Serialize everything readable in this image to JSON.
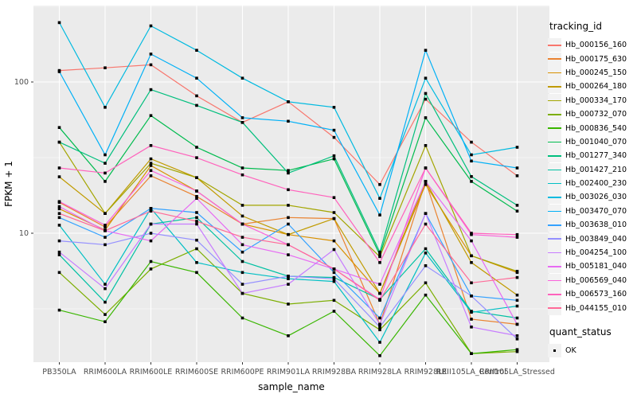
{
  "chart_data": {
    "type": "line",
    "title": "",
    "xlabel": "sample_name",
    "ylabel": "FPKM + 1",
    "y_scale": "log10",
    "ylim": [
      1.4,
      320
    ],
    "y_major_ticks": [
      10,
      100
    ],
    "y_tick_labels": [
      "10",
      "100"
    ],
    "y_minor_gridlines": [
      3.162,
      31.62,
      316.2
    ],
    "grid": "on",
    "panel_background": "#EBEBEB",
    "gridline_color": "#FFFFFF",
    "marker": "black-square",
    "legend_position": "right",
    "categories": [
      "PB350LA",
      "RRIM600LA",
      "RRIM600LE",
      "RRIM600SE",
      "RRIM600PE",
      "RRIM901LA",
      "RRIM928BA",
      "RRIM928LA",
      "RRIM928LE",
      "RRII105LA_Control",
      "RRII105LA_Stressed"
    ],
    "series": [
      {
        "name": "Hb_000156_160",
        "color": "#F8766D",
        "values": [
          119,
          124,
          130,
          81,
          54,
          74,
          43,
          21,
          77,
          40,
          24
        ]
      },
      {
        "name": "Hb_000175_630",
        "color": "#EA8331",
        "values": [
          16,
          11,
          24,
          17.5,
          11.5,
          12.7,
          12.5,
          2.5,
          22,
          2.7,
          2.5
        ]
      },
      {
        "name": "Hb_000245_150",
        "color": "#D89000",
        "values": [
          14.5,
          10.5,
          28,
          19,
          11.5,
          9.8,
          8.9,
          4.0,
          21,
          7.1,
          5.5
        ]
      },
      {
        "name": "Hb_000264_180",
        "color": "#C09B00",
        "values": [
          23.6,
          13.5,
          31,
          23.3,
          13,
          9.8,
          12.5,
          4.0,
          22,
          6.4,
          3.9
        ]
      },
      {
        "name": "Hb_000334_170",
        "color": "#A3A500",
        "values": [
          40,
          13.5,
          29,
          23.3,
          15.3,
          15.3,
          13.7,
          7.0,
          38,
          7.1,
          5.6
        ]
      },
      {
        "name": "Hb_000732_070",
        "color": "#7CAE00",
        "values": [
          5.5,
          2.9,
          5.8,
          7.9,
          4.0,
          3.4,
          3.6,
          2.3,
          4.7,
          1.6,
          1.65
        ]
      },
      {
        "name": "Hb_000836_540",
        "color": "#39B600",
        "values": [
          3.1,
          2.6,
          6.5,
          5.5,
          2.75,
          2.1,
          3.05,
          1.55,
          3.9,
          1.6,
          1.7
        ]
      },
      {
        "name": "Hb_001040_070",
        "color": "#00BB4E",
        "values": [
          50,
          22,
          60,
          37,
          27,
          26,
          31,
          7.2,
          58,
          22,
          14
        ]
      },
      {
        "name": "Hb_001277_340",
        "color": "#00BF7D",
        "values": [
          40,
          29,
          89,
          70,
          54,
          25,
          32.5,
          7.5,
          84,
          23.7,
          15.3
        ]
      },
      {
        "name": "Hb_001427_210",
        "color": "#00C1A3",
        "values": [
          7.2,
          3.5,
          11.5,
          12.7,
          6.5,
          5.2,
          5.1,
          3.65,
          7.9,
          3.05,
          2.75
        ]
      },
      {
        "name": "Hb_002400_230",
        "color": "#00BFC4",
        "values": [
          11.3,
          4.6,
          14.6,
          6.4,
          5.5,
          5.0,
          4.8,
          1.9,
          7.4,
          3.0,
          3.3
        ]
      },
      {
        "name": "Hb_003026_030",
        "color": "#00BAE0",
        "values": [
          247,
          68,
          235,
          162,
          106,
          74,
          68,
          17,
          106,
          33,
          37
        ]
      },
      {
        "name": "Hb_003470_070",
        "color": "#00B0F6",
        "values": [
          117,
          33,
          153,
          106,
          58,
          55,
          48,
          13.2,
          162,
          30,
          27
        ]
      },
      {
        "name": "Hb_003638_010",
        "color": "#35A2FF",
        "values": [
          12.7,
          9.4,
          14.6,
          13.7,
          7.5,
          11.5,
          5.5,
          2.75,
          13.5,
          3.85,
          3.6
        ]
      },
      {
        "name": "Hb_003849_040",
        "color": "#9590FF",
        "values": [
          8.9,
          8.4,
          10,
          9,
          4.6,
          5.2,
          5.0,
          2.4,
          6.1,
          3.85,
          2.0
        ]
      },
      {
        "name": "Hb_004254_100",
        "color": "#C77CFF",
        "values": [
          7.5,
          4.3,
          11.5,
          11.5,
          4.0,
          4.6,
          7.8,
          2.5,
          13.5,
          2.4,
          2.1
        ]
      },
      {
        "name": "Hb_005181_040",
        "color": "#E76BF3",
        "values": [
          15,
          10.4,
          8.9,
          17,
          8.4,
          7.2,
          5.8,
          4.6,
          22,
          8.9,
          2.5
        ]
      },
      {
        "name": "Hb_006569_040",
        "color": "#FA62DB",
        "values": [
          16.2,
          11.3,
          26,
          19,
          11.5,
          8.4,
          5.8,
          3.65,
          27,
          9.8,
          9.4
        ]
      },
      {
        "name": "Hb_006573_160",
        "color": "#FF62BC",
        "values": [
          27,
          25,
          38,
          31.6,
          24.3,
          19.4,
          17.2,
          6.4,
          27,
          10,
          9.8
        ]
      },
      {
        "name": "Hb_044155_010",
        "color": "#FF6A98",
        "values": [
          13.5,
          10.4,
          14,
          12,
          9.4,
          8.4,
          5.8,
          3.6,
          11.5,
          4.7,
          5.1
        ]
      }
    ]
  },
  "legend": {
    "tracking_title": "tracking_id",
    "quant_title": "quant_status",
    "quant_ok_label": "OK"
  },
  "colors": {
    "panel_bg": "#EBEBEB",
    "grid": "#FFFFFF",
    "tick_label": "#4D4D4D",
    "axis_title": "#000000",
    "legend_key_bg": "#F2F2F2",
    "marker": "#000000"
  }
}
